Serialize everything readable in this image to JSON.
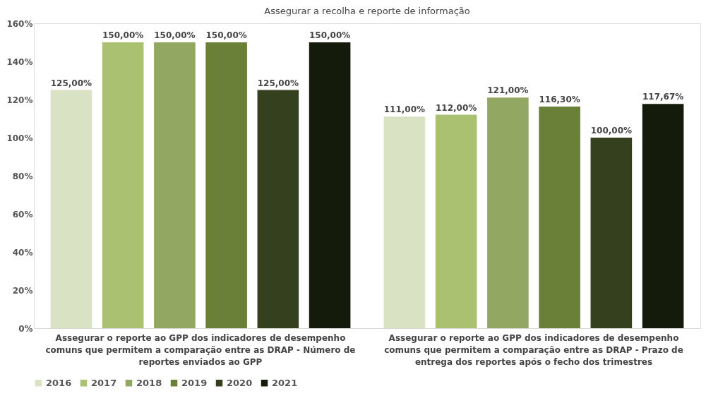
{
  "chart_data": {
    "type": "bar",
    "title": "Assegurar a recolha e reporte de informação",
    "categories": [
      "Assegurar o reporte ao GPP dos indicadores de desempenho comuns que permitem a comparação entre as DRAP - Número de reportes enviados ao GPP",
      "Assegurar o reporte ao GPP dos indicadores de desempenho comuns que permitem a comparação entre as DRAP - Prazo de entrega dos reportes após o fecho dos trimestres"
    ],
    "series": [
      {
        "name": "2016",
        "color": "#d9e3c4",
        "values": [
          125,
          111
        ],
        "value_labels": [
          "125,00%",
          "111,00%"
        ]
      },
      {
        "name": "2017",
        "color": "#a9c170",
        "values": [
          150,
          112
        ],
        "value_labels": [
          "150,00%",
          "112,00%"
        ]
      },
      {
        "name": "2018",
        "color": "#92a862",
        "values": [
          150,
          121
        ],
        "value_labels": [
          "150,00%",
          "121,00%"
        ]
      },
      {
        "name": "2019",
        "color": "#6a7f38",
        "values": [
          150,
          116.3
        ],
        "value_labels": [
          "150,00%",
          "116,30%"
        ]
      },
      {
        "name": "2020",
        "color": "#35401e",
        "values": [
          125,
          100
        ],
        "value_labels": [
          "125,00%",
          "100,00%"
        ]
      },
      {
        "name": "2021",
        "color": "#151b0a",
        "values": [
          150,
          117.67
        ],
        "value_labels": [
          "150,00%",
          "117,67%"
        ]
      }
    ],
    "ylim": [
      0,
      160
    ],
    "yticks": [
      {
        "value": 0,
        "label": "0%"
      },
      {
        "value": 20,
        "label": "20%"
      },
      {
        "value": 40,
        "label": "40%"
      },
      {
        "value": 60,
        "label": "60%"
      },
      {
        "value": 80,
        "label": "80%"
      },
      {
        "value": 100,
        "label": "100%"
      },
      {
        "value": 120,
        "label": "120%"
      },
      {
        "value": 140,
        "label": "140%"
      },
      {
        "value": 160,
        "label": "160%"
      }
    ],
    "grid": false,
    "legend": "bottom"
  }
}
